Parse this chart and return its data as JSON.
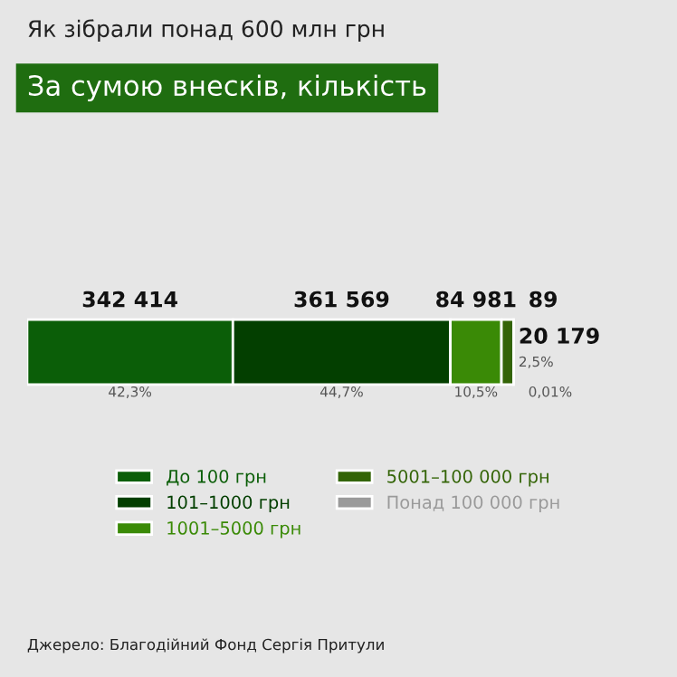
{
  "chart_data": {
    "type": "bar",
    "orientation": "horizontal",
    "stacked": true,
    "title": "Як зібрали понад 600 млн грн",
    "subtitle": "За сумою внесків, кількість",
    "categories": [
      null
    ],
    "series": [
      {
        "name": "До 100 грн",
        "color": "#0b5e08",
        "values": [
          42.3
        ],
        "value_labels": [
          "42,3%"
        ]
      },
      {
        "name": "101–1000 грн",
        "color": "#033f00",
        "values": [
          44.7
        ],
        "value_labels": [
          "44,7%"
        ]
      },
      {
        "name": "1001–5000 грн",
        "color": "#3a8a06",
        "values": [
          10.5
        ],
        "value_labels": [
          "10,5%"
        ]
      },
      {
        "name": "5001–100 000 грн",
        "color": "#336406",
        "values": [
          2.5
        ],
        "value_labels": [
          "2,5%"
        ]
      },
      {
        "name": "Понад 100 000 грн",
        "color": "#9a9a9a",
        "values": [
          0.01
        ],
        "value_labels": [
          "0,01%"
        ]
      }
    ],
    "annotations": [
      "342 414",
      "361 569",
      "84 981",
      "20 179",
      "89",
      "Джерело: Благодійний Фонд Сергія Притули"
    ],
    "legend": "bottom"
  }
}
